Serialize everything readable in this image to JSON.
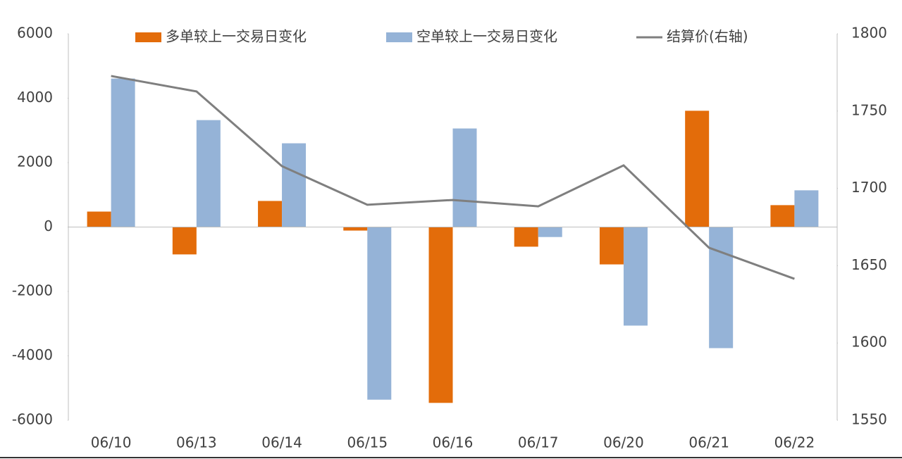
{
  "chart_data": {
    "type": "bar_line",
    "categories": [
      "06/10",
      "06/13",
      "06/14",
      "06/15",
      "06/16",
      "06/17",
      "06/20",
      "06/21",
      "06/22"
    ],
    "series": [
      {
        "name": "多单较上一交易日变化",
        "type": "bar",
        "color": "#e36c0a",
        "values": [
          480,
          -850,
          810,
          -110,
          -5460,
          -610,
          -1160,
          3610,
          680
        ]
      },
      {
        "name": "空单较上一交易日变化",
        "type": "bar",
        "color": "#95b3d7",
        "values": [
          4610,
          3320,
          2600,
          -5360,
          3060,
          -310,
          -3060,
          -3760,
          1140
        ]
      },
      {
        "name": "结算价(右轴)",
        "type": "line",
        "axis": "y2",
        "color": "#7f7f7f",
        "values": [
          1772.7,
          1762.7,
          1714.4,
          1689.4,
          1692.5,
          1688.4,
          1714.9,
          1661.6,
          1641.5
        ]
      }
    ],
    "ylim": [
      -6000,
      6000
    ],
    "yticks": [
      -6000,
      -4000,
      -2000,
      0,
      2000,
      4000,
      6000
    ],
    "y2lim": [
      1550,
      1800
    ],
    "y2ticks": [
      1550,
      1600,
      1650,
      1700,
      1750,
      1800
    ],
    "legend": "top"
  }
}
